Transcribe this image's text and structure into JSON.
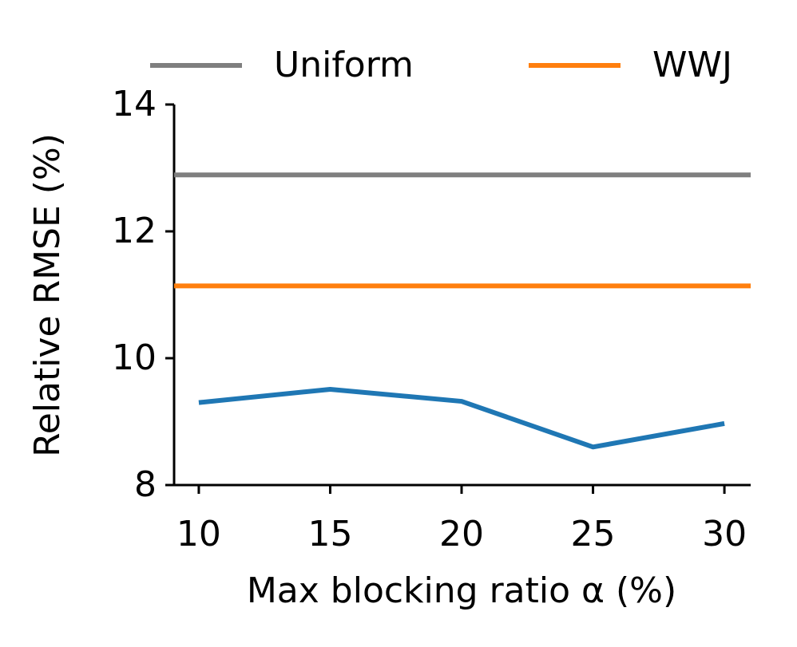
{
  "chart_data": {
    "type": "line",
    "xlabel": "Max blocking ratio α (%)",
    "ylabel": "Relative RMSE (%)",
    "x": [
      10,
      15,
      20,
      25,
      30
    ],
    "series": [
      {
        "name": "Uniform",
        "color": "#7f7f7f",
        "x": [
          9.06,
          31
        ],
        "values": [
          12.89,
          12.89
        ]
      },
      {
        "name": "WWJ",
        "color": "#ff7f0e",
        "x": [
          9.06,
          31
        ],
        "values": [
          11.14,
          11.14
        ]
      },
      {
        "color": "#1f77b4",
        "values": [
          9.3,
          9.51,
          9.32,
          8.6,
          8.97
        ]
      }
    ],
    "xlim": [
      9.06,
      31
    ],
    "xticks": [
      10,
      15,
      20,
      25,
      30
    ],
    "ylim": [
      8,
      14
    ],
    "yticks": [
      8,
      10,
      12,
      14
    ],
    "grid": false,
    "legend": "top"
  }
}
